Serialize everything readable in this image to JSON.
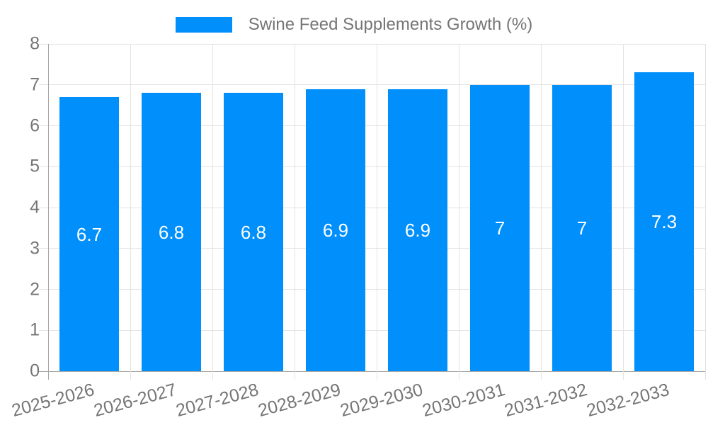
{
  "chart_data": {
    "type": "bar",
    "title": "Swine Feed Supplements Growth (%)",
    "legend": {
      "label": "Swine Feed Supplements Growth (%)",
      "position": "top"
    },
    "categories": [
      "2025-2026",
      "2026-2027",
      "2027-2028",
      "2028-2029",
      "2029-2030",
      "2030-2031",
      "2031-2032",
      "2032-2033"
    ],
    "values": [
      6.7,
      6.8,
      6.8,
      6.9,
      6.9,
      7,
      7,
      7.3
    ],
    "bar_value_labels": [
      "6.7",
      "6.8",
      "6.8",
      "6.9",
      "6.9",
      "7",
      "7",
      "7.3"
    ],
    "xlabel": "",
    "ylabel": "",
    "ylim": [
      0,
      8
    ],
    "yticks": [
      0,
      1,
      2,
      3,
      4,
      5,
      6,
      7,
      8
    ],
    "grid": "on",
    "x_label_rotation_deg": -15,
    "colors": {
      "bar": "#008FFB",
      "grid_line": "#E3E3E3",
      "axis_line": "#A8A8A8",
      "tick_label": "#757575",
      "value_label": "#FFFFFF",
      "background": "#FFFFFF"
    }
  }
}
